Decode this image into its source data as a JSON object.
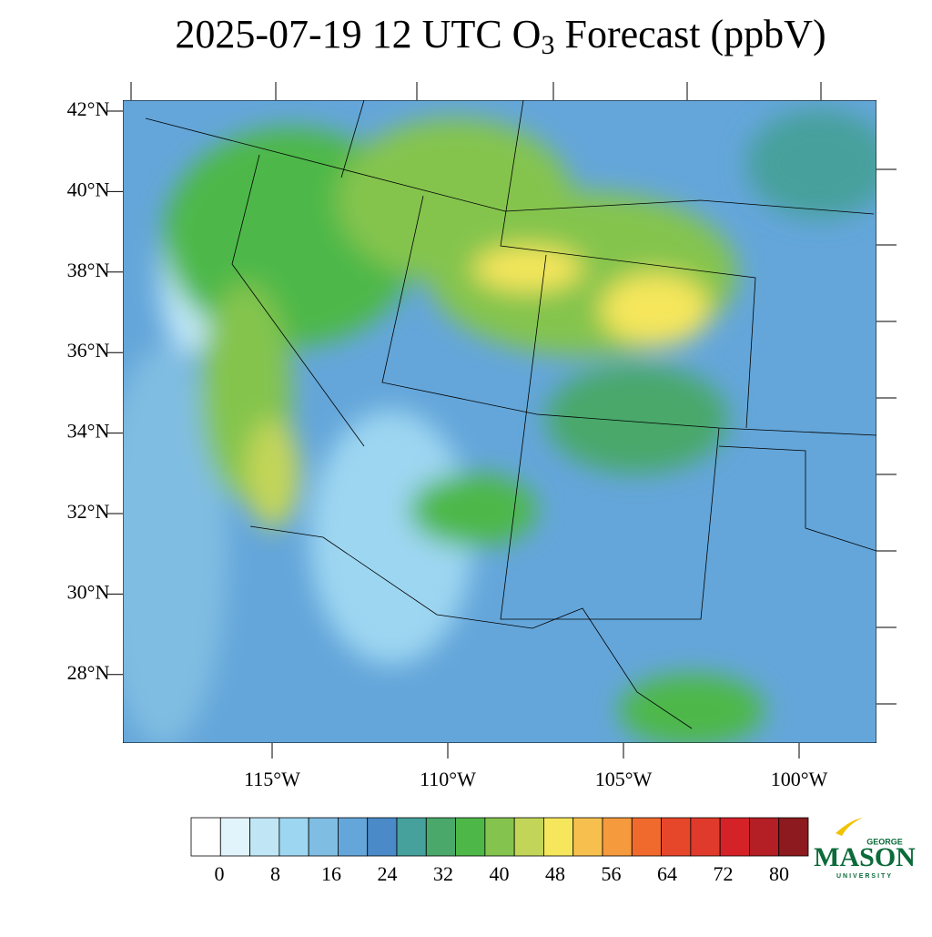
{
  "title": {
    "main": "2025-07-19 12 UTC O",
    "subscript": "3",
    "rest": " Forecast (ppbV)"
  },
  "map": {
    "lat_labels": [
      "42°N",
      "40°N",
      "38°N",
      "36°N",
      "34°N",
      "32°N",
      "30°N",
      "28°N"
    ],
    "lon_labels": [
      "115°W",
      "110°W",
      "105°W",
      "100°W"
    ]
  },
  "colorbar": {
    "colors": [
      "#ffffff",
      "#e1f3fb",
      "#c0e6f6",
      "#9dd6f1",
      "#80bde2",
      "#64a6da",
      "#4a8ac8",
      "#46a09b",
      "#4aa86b",
      "#4db848",
      "#84c44e",
      "#c3d558",
      "#f5e65c",
      "#f7c04e",
      "#f59a3d",
      "#f16a2d",
      "#e6472b",
      "#df3a2b",
      "#d52228",
      "#b31f24",
      "#8c1a1e"
    ],
    "ticks": [
      0,
      8,
      16,
      24,
      32,
      40,
      48,
      56,
      64,
      72,
      80
    ]
  },
  "logo": {
    "top": "GEORGE",
    "main": "MASON",
    "bottom": "UNIVERSITY"
  }
}
